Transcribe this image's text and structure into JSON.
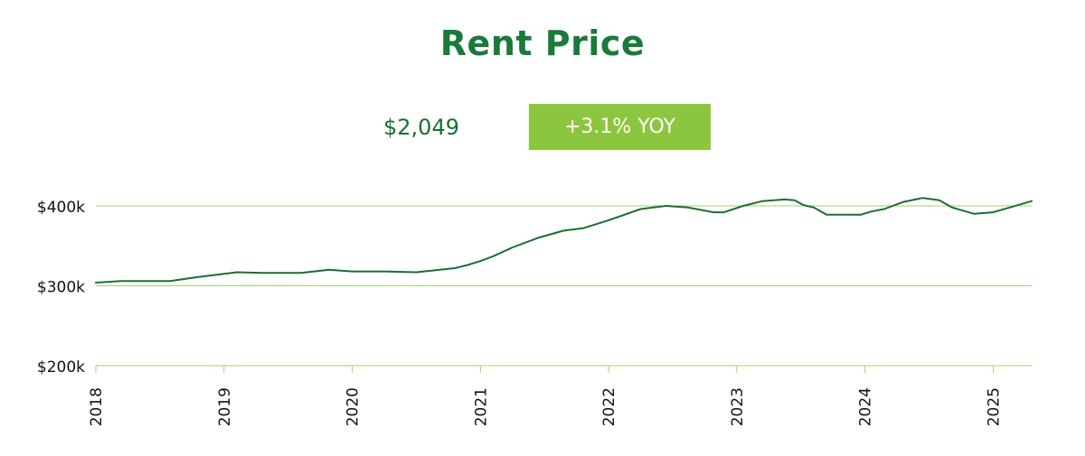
{
  "header": {
    "title": "Rent Price",
    "current_price": "$2,049",
    "yoy_badge": "+3.1% YOY"
  },
  "colors": {
    "title": "#1a7a3a",
    "line": "#1a6e35",
    "grid": "#9fd36a",
    "badge": "#8cc63f"
  },
  "chart_data": {
    "type": "line",
    "title": "",
    "xlabel": "",
    "ylabel": "",
    "ylim": [
      200000,
      400000
    ],
    "y_ticks": [
      {
        "value": 200000,
        "label": "$200k"
      },
      {
        "value": 300000,
        "label": "$300k"
      },
      {
        "value": 400000,
        "label": "$400k"
      }
    ],
    "xlim": [
      2018.0,
      2025.3
    ],
    "x_ticks": [
      {
        "value": 2018,
        "label": "2018"
      },
      {
        "value": 2019,
        "label": "2019"
      },
      {
        "value": 2020,
        "label": "2020"
      },
      {
        "value": 2021,
        "label": "2021"
      },
      {
        "value": 2022,
        "label": "2022"
      },
      {
        "value": 2023,
        "label": "2023"
      },
      {
        "value": 2024,
        "label": "2024"
      },
      {
        "value": 2025,
        "label": "2025"
      }
    ],
    "grid": "horizontal",
    "series": [
      {
        "x": [
          2018.0,
          2018.2,
          2018.4,
          2018.58,
          2018.8,
          2019.0,
          2019.1,
          2019.3,
          2019.6,
          2019.82,
          2020.0,
          2020.25,
          2020.5,
          2020.8,
          2020.9,
          2021.0,
          2021.1,
          2021.25,
          2021.45,
          2021.65,
          2021.8,
          2022.0,
          2022.25,
          2022.45,
          2022.62,
          2022.82,
          2022.9,
          2023.05,
          2023.2,
          2023.37,
          2023.45,
          2023.52,
          2023.6,
          2023.7,
          2023.85,
          2023.97,
          2024.05,
          2024.15,
          2024.3,
          2024.45,
          2024.58,
          2024.68,
          2024.85,
          2025.0,
          2025.15,
          2025.3
        ],
        "y": [
          304000,
          306000,
          306000,
          306000,
          311000,
          315000,
          317000,
          316000,
          316000,
          320000,
          318000,
          318000,
          317000,
          322000,
          326000,
          331000,
          337000,
          348000,
          360000,
          369000,
          372000,
          382000,
          396000,
          400000,
          398000,
          392000,
          392000,
          400000,
          406000,
          408000,
          407000,
          401000,
          398000,
          389000,
          389000,
          389000,
          393000,
          396000,
          405000,
          410000,
          407000,
          398000,
          390000,
          392000,
          399000,
          406000
        ]
      }
    ]
  }
}
